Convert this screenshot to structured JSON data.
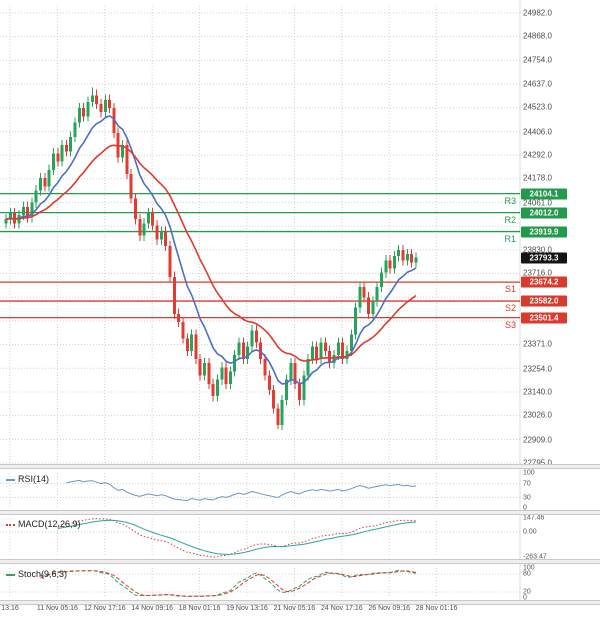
{
  "chart_data": {
    "type": "candlestick",
    "y_axis": {
      "ticks": [
        "24982.0",
        "24868.0",
        "24754.0",
        "24637.0",
        "24523.0",
        "24406.0",
        "24292.0",
        "24178.0",
        "24061.0",
        "23830.0",
        "23716.0",
        "23371.0",
        "23254.0",
        "23140.0",
        "23026.0",
        "22909.0",
        "22795.0"
      ]
    },
    "x_axis": {
      "labels": [
        "13:16",
        "11 Nov 05:16",
        "12 Nov 17:16",
        "14 Nov 09:16",
        "18 Nov 01:16",
        "19 Nov 13:16",
        "21 Nov 05:16",
        "24 Nov 17:16",
        "26 Nov 09:16",
        "28 Nov 01:16"
      ]
    },
    "candles": [
      [
        23960,
        24005,
        23935,
        23980
      ],
      [
        23980,
        24035,
        23955,
        24010
      ],
      [
        24010,
        24035,
        23935,
        23960
      ],
      [
        23960,
        24025,
        23935,
        24000
      ],
      [
        24000,
        24065,
        23975,
        24040
      ],
      [
        24040,
        24065,
        23965,
        23990
      ],
      [
        23990,
        24085,
        23965,
        24060
      ],
      [
        24060,
        24145,
        24035,
        24120
      ],
      [
        24120,
        24205,
        24095,
        24180
      ],
      [
        24180,
        24205,
        24115,
        24140
      ],
      [
        24140,
        24245,
        24115,
        24220
      ],
      [
        24220,
        24325,
        24195,
        24300
      ],
      [
        24300,
        24325,
        24235,
        24260
      ],
      [
        24260,
        24365,
        24235,
        24340
      ],
      [
        24340,
        24365,
        24285,
        24310
      ],
      [
        24310,
        24405,
        24285,
        24380
      ],
      [
        24380,
        24475,
        24355,
        24450
      ],
      [
        24450,
        24545,
        24425,
        24520
      ],
      [
        24520,
        24545,
        24455,
        24480
      ],
      [
        24480,
        24575,
        24455,
        24550
      ],
      [
        24550,
        24620,
        24525,
        24580
      ],
      [
        24580,
        24610,
        24515,
        24540
      ],
      [
        24540,
        24565,
        24475,
        24500
      ],
      [
        24500,
        24585,
        24475,
        24560
      ],
      [
        24560,
        24585,
        24495,
        24520
      ],
      [
        24520,
        24545,
        24375,
        24400
      ],
      [
        24400,
        24425,
        24255,
        24280
      ],
      [
        24280,
        24365,
        24255,
        24340
      ],
      [
        24340,
        24365,
        24175,
        24200
      ],
      [
        24200,
        24225,
        24055,
        24080
      ],
      [
        24080,
        24105,
        23955,
        23980
      ],
      [
        23980,
        24005,
        23875,
        23900
      ],
      [
        23900,
        23985,
        23875,
        23960
      ],
      [
        23960,
        24035,
        23935,
        24010
      ],
      [
        24010,
        24035,
        23925,
        23950
      ],
      [
        23950,
        23975,
        23855,
        23880
      ],
      [
        23880,
        23945,
        23855,
        23920
      ],
      [
        23920,
        23945,
        23825,
        23850
      ],
      [
        23850,
        23875,
        23675,
        23700
      ],
      [
        23700,
        23725,
        23495,
        23520
      ],
      [
        23520,
        23545,
        23455,
        23480
      ],
      [
        23480,
        23505,
        23375,
        23400
      ],
      [
        23400,
        23425,
        23315,
        23340
      ],
      [
        23340,
        23445,
        23315,
        23420
      ],
      [
        23420,
        23445,
        23275,
        23300
      ],
      [
        23300,
        23325,
        23195,
        23220
      ],
      [
        23220,
        23305,
        23195,
        23280
      ],
      [
        23280,
        23305,
        23155,
        23180
      ],
      [
        23180,
        23205,
        23095,
        23120
      ],
      [
        23120,
        23225,
        23095,
        23200
      ],
      [
        23200,
        23285,
        23175,
        23260
      ],
      [
        23260,
        23285,
        23155,
        23180
      ],
      [
        23180,
        23265,
        23155,
        23240
      ],
      [
        23240,
        23345,
        23215,
        23320
      ],
      [
        23320,
        23405,
        23295,
        23380
      ],
      [
        23380,
        23405,
        23275,
        23300
      ],
      [
        23300,
        23385,
        23275,
        23360
      ],
      [
        23360,
        23465,
        23335,
        23440
      ],
      [
        23440,
        23465,
        23355,
        23380
      ],
      [
        23380,
        23405,
        23275,
        23300
      ],
      [
        23300,
        23325,
        23195,
        23220
      ],
      [
        23220,
        23245,
        23125,
        23150
      ],
      [
        23150,
        23175,
        23035,
        23060
      ],
      [
        23060,
        23085,
        22960,
        22980
      ],
      [
        22980,
        23125,
        22955,
        23100
      ],
      [
        23100,
        23225,
        23075,
        23200
      ],
      [
        23200,
        23305,
        23175,
        23280
      ],
      [
        23280,
        23305,
        23155,
        23180
      ],
      [
        23180,
        23205,
        23075,
        23100
      ],
      [
        23100,
        23245,
        23075,
        23220
      ],
      [
        23220,
        23325,
        23195,
        23300
      ],
      [
        23300,
        23385,
        23275,
        23360
      ],
      [
        23360,
        23385,
        23275,
        23300
      ],
      [
        23300,
        23405,
        23275,
        23380
      ],
      [
        23380,
        23405,
        23315,
        23340
      ],
      [
        23340,
        23365,
        23255,
        23280
      ],
      [
        23280,
        23345,
        23255,
        23320
      ],
      [
        23320,
        23405,
        23295,
        23380
      ],
      [
        23380,
        23405,
        23275,
        23300
      ],
      [
        23300,
        23365,
        23275,
        23340
      ],
      [
        23340,
        23445,
        23315,
        23420
      ],
      [
        23420,
        23575,
        23395,
        23550
      ],
      [
        23550,
        23675,
        23525,
        23650
      ],
      [
        23650,
        23675,
        23575,
        23600
      ],
      [
        23600,
        23625,
        23495,
        23520
      ],
      [
        23520,
        23605,
        23495,
        23580
      ],
      [
        23580,
        23675,
        23555,
        23650
      ],
      [
        23650,
        23745,
        23625,
        23720
      ],
      [
        23720,
        23805,
        23695,
        23780
      ],
      [
        23780,
        23805,
        23715,
        23740
      ],
      [
        23740,
        23825,
        23715,
        23800
      ],
      [
        23800,
        23855,
        23775,
        23830
      ],
      [
        23830,
        23855,
        23755,
        23780
      ],
      [
        23780,
        23835,
        23755,
        23810
      ],
      [
        23810,
        23835,
        23745,
        23770
      ],
      [
        23770,
        23818,
        23745,
        23793
      ]
    ],
    "overlays": {
      "moving_averages": [
        {
          "name": "ma-fast",
          "period": 10
        },
        {
          "name": "ma-slow",
          "period": 25
        }
      ],
      "resistance_levels": [
        {
          "name": "R3",
          "label": "24104.1",
          "value": 24104.1
        },
        {
          "name": "R2",
          "label": "24012.0",
          "value": 24012.0
        },
        {
          "name": "R1",
          "label": "23919.9",
          "value": 23919.9
        }
      ],
      "support_levels": [
        {
          "name": "S1",
          "label": "23674.2",
          "value": 23674.2
        },
        {
          "name": "S2",
          "label": "23582.0",
          "value": 23582.0
        },
        {
          "name": "S3",
          "label": "23501.4",
          "value": 23501.4
        }
      ],
      "current_price": {
        "label": "23793.3",
        "value": 23793.3
      }
    },
    "indicators": [
      {
        "name": "RSI(14)",
        "scale_labels": [
          "100",
          "70",
          "30",
          "0"
        ],
        "guides": [
          70,
          30
        ]
      },
      {
        "name": "MACD(12,26,9)",
        "scale_labels": [
          "147.46",
          "0.00",
          "-263.47"
        ],
        "guides": [
          0
        ]
      },
      {
        "name": "Stoch(9,6,3)",
        "scale_labels": [
          "100",
          "80",
          "20",
          "0"
        ],
        "guides": [
          80,
          20
        ]
      }
    ]
  },
  "colors": {
    "up": "#27a35c",
    "down": "#e23b32",
    "resistance": "#229a4c",
    "support": "#d93a2e",
    "current_price_bg": "#141414",
    "ma_fast": "#4a6fc4",
    "ma_slow": "#e03a2e",
    "rsi_line": "#6c98c2",
    "macd_line": "#e03a2e",
    "macd_signal": "#2aa79a",
    "stoch_k": "#2fa463",
    "stoch_d": "#e03a2e",
    "grid": "#d0d0d0",
    "axis_text": "#4d4d4d"
  }
}
